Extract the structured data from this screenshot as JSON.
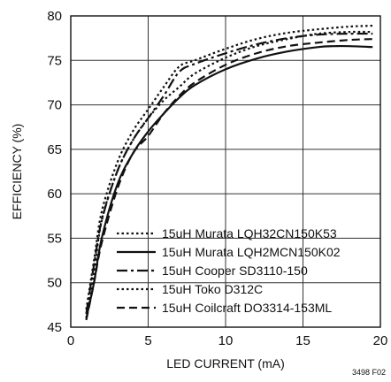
{
  "chart_data": {
    "type": "line",
    "title": "",
    "xlabel": "LED CURRENT (mA)",
    "ylabel": "EFFICIENCY (%)",
    "xlim": [
      0,
      20
    ],
    "ylim": [
      45,
      80
    ],
    "xticks": [
      0,
      5,
      10,
      15,
      20
    ],
    "yticks": [
      45,
      50,
      55,
      60,
      65,
      70,
      75,
      80
    ],
    "grid": true,
    "legend_position": "bottom-right",
    "footnote": "3498 F02",
    "series": [
      {
        "name": "15uH Murata LQH32CN150K53",
        "style": "dotted",
        "x": [
          1,
          1.5,
          2,
          3,
          4,
          5,
          6,
          7,
          8,
          10,
          12,
          14,
          16,
          18,
          19.5
        ],
        "y": [
          46,
          51,
          57,
          62.5,
          66,
          68.5,
          70.5,
          72,
          73.5,
          75.3,
          76.6,
          77.4,
          78,
          78.2,
          78.2
        ]
      },
      {
        "name": "15uH Murata LQH2MCN150K02",
        "style": "solid",
        "x": [
          1,
          1.5,
          2,
          3,
          4,
          5,
          6,
          7,
          8,
          10,
          12,
          14,
          16,
          17,
          18,
          19.5
        ],
        "y": [
          46,
          50,
          55,
          61,
          64.5,
          67,
          69,
          70.8,
          72.2,
          74,
          75.2,
          76,
          76.5,
          76.6,
          76.6,
          76.5
        ]
      },
      {
        "name": "15uH Cooper SD3110-150",
        "style": "dashdot",
        "x": [
          1,
          1.5,
          2,
          3,
          4,
          5,
          6,
          7,
          8,
          10,
          12,
          14,
          16,
          18,
          19.5
        ],
        "y": [
          46.5,
          52,
          57,
          62.5,
          66,
          68.5,
          71,
          73.7,
          74.6,
          75.8,
          76.8,
          77.5,
          77.9,
          78,
          78
        ]
      },
      {
        "name": "15uH Toko D312C",
        "style": "dotted",
        "x": [
          1,
          1.5,
          2,
          3,
          4,
          5,
          6,
          7,
          8,
          10,
          12,
          14,
          16,
          18,
          19.5
        ],
        "y": [
          47,
          52.5,
          58,
          63.5,
          67,
          69.5,
          72,
          74.3,
          75,
          76.3,
          77.4,
          78.1,
          78.5,
          78.8,
          78.9
        ]
      },
      {
        "name": "15uH Coilcraft DO3314-153ML",
        "style": "dashed",
        "x": [
          1,
          1.5,
          2,
          3,
          4,
          5,
          6,
          7,
          8,
          10,
          12,
          14,
          16,
          18,
          19.5
        ],
        "y": [
          45.8,
          50,
          54.5,
          60.5,
          64.5,
          66.5,
          69,
          71,
          72.5,
          74.5,
          75.8,
          76.6,
          77,
          77.3,
          77.4
        ]
      }
    ]
  }
}
